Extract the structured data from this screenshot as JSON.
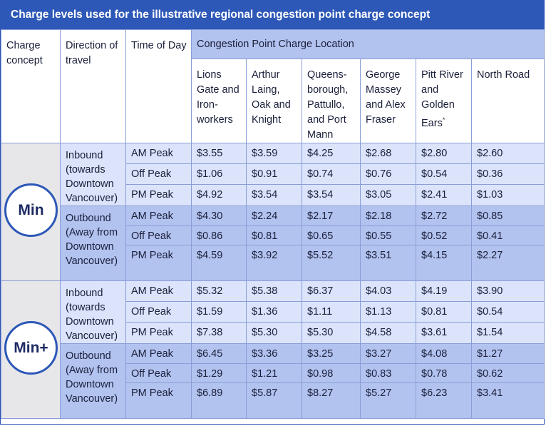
{
  "title": "Charge levels used for the illustrative regional congestion point charge concept",
  "headers": {
    "charge_concept": "Charge concept",
    "direction": "Direction of travel",
    "time": "Time of Day",
    "location_group": "Congestion Point Charge Location"
  },
  "locations": [
    "Lions Gate and Iron-workers",
    "Arthur Laing, Oak and Knight",
    "Queens-borough, Pattullo, and Port Mann",
    "George Massey and Alex Fraser",
    "Pitt River and Golden Ears",
    "North Road"
  ],
  "location_footnote_mark": "*",
  "concepts": [
    {
      "name": "Min",
      "groups": [
        {
          "direction": "Inbound (towards Downtown Vancouver)",
          "rows": [
            {
              "time": "AM Peak",
              "values": [
                "$3.55",
                "$3.59",
                "$4.25",
                "$2.68",
                "$2.80",
                "$2.60"
              ]
            },
            {
              "time": "Off Peak",
              "values": [
                "$1.06",
                "$0.91",
                "$0.74",
                "$0.76",
                "$0.54",
                "$0.36"
              ]
            },
            {
              "time": "PM Peak",
              "values": [
                "$4.92",
                "$3.54",
                "$3.54",
                "$3.05",
                "$2.41",
                "$1.03"
              ]
            }
          ]
        },
        {
          "direction": "Outbound (Away from Downtown Vancouver)",
          "rows": [
            {
              "time": "AM Peak",
              "values": [
                "$4.30",
                "$2.24",
                "$2.17",
                "$2.18",
                "$2.72",
                "$0.85"
              ]
            },
            {
              "time": "Off Peak",
              "values": [
                "$0.86",
                "$0.81",
                "$0.65",
                "$0.55",
                "$0.52",
                "$0.41"
              ]
            },
            {
              "time": "PM Peak",
              "values": [
                "$4.59",
                "$3.92",
                "$5.52",
                "$3.51",
                "$4.15",
                "$2.27"
              ]
            }
          ]
        }
      ]
    },
    {
      "name": "Min+",
      "groups": [
        {
          "direction": "Inbound (towards Downtown Vancouver)",
          "rows": [
            {
              "time": "AM Peak",
              "values": [
                "$5.32",
                "$5.38",
                "$6.37",
                "$4.03",
                "$4.19",
                "$3.90"
              ]
            },
            {
              "time": "Off Peak",
              "values": [
                "$1.59",
                "$1.36",
                "$1.11",
                "$1.13",
                "$0.81",
                "$0.54"
              ]
            },
            {
              "time": "PM Peak",
              "values": [
                "$7.38",
                "$5.30",
                "$5.30",
                "$4.58",
                "$3.61",
                "$1.54"
              ]
            }
          ]
        },
        {
          "direction": "Outbound (Away from Downtown Vancouver)",
          "rows": [
            {
              "time": "AM Peak",
              "values": [
                "$6.45",
                "$3.36",
                "$3.25",
                "$3.27",
                "$4.08",
                "$1.27"
              ]
            },
            {
              "time": "Off Peak",
              "values": [
                "$1.29",
                "$1.21",
                "$0.98",
                "$0.83",
                "$0.78",
                "$0.62"
              ]
            },
            {
              "time": "PM Peak",
              "values": [
                "$6.89",
                "$5.87",
                "$8.27",
                "$5.27",
                "$6.23",
                "$3.41"
              ]
            }
          ]
        }
      ]
    }
  ],
  "colors": {
    "title_bg": "#2d58b8",
    "light_band": "#dbe4fb",
    "dark_band": "#b3c3f0",
    "concept_bg": "#e7e7e9"
  }
}
